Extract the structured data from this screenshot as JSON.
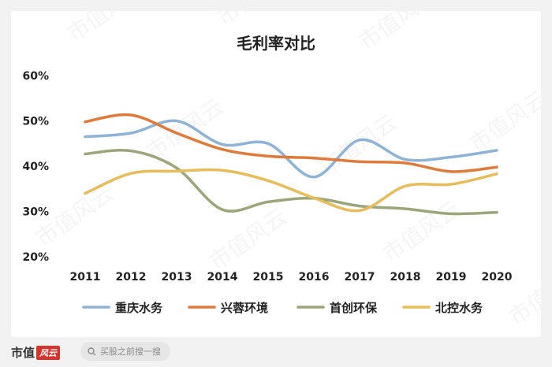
{
  "chart_data": {
    "type": "line",
    "title": "毛利率对比",
    "categories": [
      "2011",
      "2012",
      "2013",
      "2014",
      "2015",
      "2016",
      "2017",
      "2018",
      "2019",
      "2020"
    ],
    "y_ticks": [
      "20%",
      "30%",
      "40%",
      "50%",
      "60%"
    ],
    "ylim": [
      20,
      60
    ],
    "grid": false,
    "legend_position": "bottom",
    "series": [
      {
        "name": "重庆水务",
        "color": "#8eb3d6",
        "values": [
          46.5,
          47.3,
          50.0,
          44.8,
          45.0,
          37.6,
          45.8,
          41.5,
          42.0,
          43.5
        ]
      },
      {
        "name": "兴蓉环境",
        "color": "#e07a3a",
        "values": [
          49.8,
          51.3,
          47.3,
          43.7,
          42.2,
          41.8,
          41.0,
          40.7,
          38.8,
          39.8
        ]
      },
      {
        "name": "首创环保",
        "color": "#9aa67a",
        "values": [
          42.7,
          43.4,
          39.6,
          30.4,
          32.1,
          32.9,
          31.2,
          30.6,
          29.5,
          29.8
        ]
      },
      {
        "name": "北控水务",
        "color": "#e8bc5a",
        "values": [
          34.0,
          38.4,
          38.9,
          39.1,
          36.8,
          33.0,
          30.2,
          35.6,
          36.0,
          38.3
        ]
      }
    ]
  },
  "footer": {
    "brand_text": "市值",
    "brand_badge": "风云",
    "search_placeholder": "买股之前搜一搜"
  },
  "watermark_text": "市值风云"
}
